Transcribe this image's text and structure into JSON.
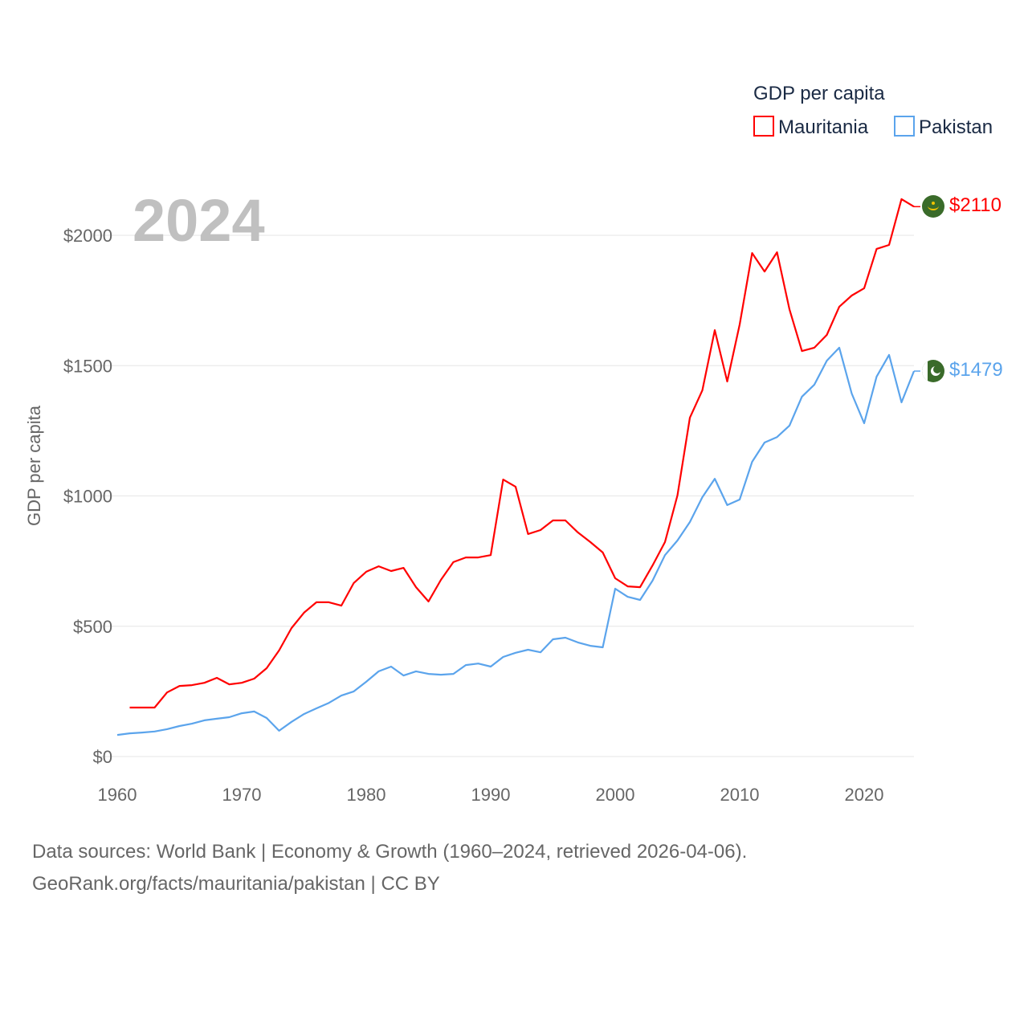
{
  "chart_data": {
    "type": "line",
    "title": "GDP per capita",
    "year_label": "2024",
    "ylabel": "GDP per capita",
    "xlabel": "",
    "xlim": [
      1960,
      2024
    ],
    "ylim": [
      0,
      2200
    ],
    "x_ticks": [
      1960,
      1970,
      1980,
      1990,
      2000,
      2010,
      2020
    ],
    "x_tick_labels": [
      "1960",
      "1970",
      "1980",
      "1990",
      "2000",
      "2010",
      "2020"
    ],
    "y_ticks": [
      0,
      500,
      1000,
      1500,
      2000
    ],
    "y_tick_labels": [
      "$0",
      "$500",
      "$1000",
      "$1500",
      "$2000"
    ],
    "grid": true,
    "legend_position": "top-right",
    "series": [
      {
        "name": "Mauritania",
        "color": "#ff0000",
        "end_label": "$2110",
        "flag": "mauritania-flag",
        "start_year": 1961,
        "values": [
          188,
          188,
          188,
          246,
          271,
          274,
          283,
          302,
          277,
          283,
          299,
          339,
          407,
          493,
          552,
          592,
          592,
          579,
          666,
          709,
          730,
          712,
          724,
          650,
          595,
          678,
          746,
          764,
          764,
          773,
          1063,
          1035,
          854,
          869,
          906,
          906,
          860,
          823,
          783,
          684,
          653,
          650,
          733,
          823,
          1002,
          1300,
          1405,
          1636,
          1439,
          1658,
          1932,
          1861,
          1935,
          1716,
          1556,
          1569,
          1618,
          1726,
          1769,
          1797,
          1948,
          1963,
          2139,
          2110
        ]
      },
      {
        "name": "Pakistan",
        "color": "#5ba4ec",
        "end_label": "$1479",
        "flag": "pakistan-flag",
        "start_year": 1960,
        "values": [
          83,
          89,
          92,
          96,
          105,
          117,
          126,
          139,
          145,
          151,
          166,
          173,
          148,
          99,
          133,
          163,
          185,
          206,
          234,
          250,
          287,
          327,
          345,
          311,
          327,
          317,
          314,
          317,
          351,
          357,
          345,
          382,
          398,
          410,
          400,
          450,
          456,
          438,
          425,
          419,
          644,
          613,
          601,
          675,
          773,
          829,
          900,
          995,
          1066,
          965,
          986,
          1131,
          1205,
          1226,
          1270,
          1381,
          1427,
          1519,
          1569,
          1393,
          1279,
          1458,
          1541,
          1359,
          1479
        ]
      }
    ]
  },
  "footer": {
    "line1": "Data sources: World Bank | Economy & Growth (1960–2024, retrieved 2026-04-06).",
    "line2": "GeoRank.org/facts/mauritania/pakistan | CC BY"
  }
}
